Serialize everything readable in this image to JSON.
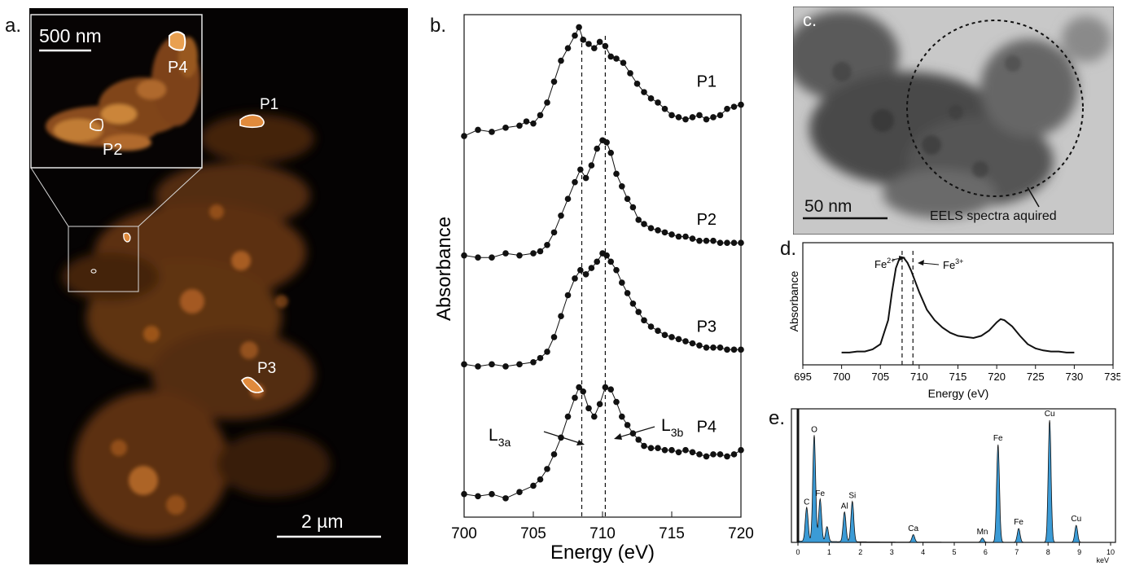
{
  "panels": {
    "a": {
      "letter": "a.",
      "inset_scale": "500 nm",
      "main_scale": "2 µm",
      "regions": [
        "P1",
        "P2",
        "P3",
        "P4"
      ],
      "colors": {
        "background": "#050303",
        "signal": "#d97a2a",
        "outline": "#ffffff"
      }
    },
    "b": {
      "letter": "b.",
      "ylabel": "Absorbance",
      "xlabel": "Energy (eV)",
      "xticks": [
        700,
        705,
        710,
        715,
        720
      ],
      "xlim": [
        700,
        720
      ],
      "dashed_lines": [
        708.5,
        710.2
      ],
      "annotations": {
        "l3a_main": "L",
        "l3a_sub": "3a",
        "l3b_main": "L",
        "l3b_sub": "3b"
      }
    },
    "c": {
      "letter": "c.",
      "scale": "50 nm",
      "annotation": "EELS spectra aquired"
    },
    "d": {
      "letter": "d.",
      "ylabel": "Absorbance",
      "xlabel": "Energy (eV)",
      "xticks": [
        695,
        700,
        705,
        710,
        715,
        720,
        725,
        730,
        735
      ],
      "xlim": [
        695,
        735
      ],
      "dashed_lines": [
        707.8,
        709.2
      ],
      "fe2_main": "Fe",
      "fe2_sup": "2+",
      "fe3_main": "Fe",
      "fe3_sup": "3+"
    },
    "e": {
      "letter": "e.",
      "xunit": "keV",
      "xticks": [
        0,
        1,
        2,
        3,
        4,
        5,
        6,
        7,
        8,
        9,
        10
      ],
      "fill_color": "#3b9bd6",
      "peak_labels": [
        "C",
        "O",
        "Fe",
        "Al",
        "Si",
        "Ca",
        "Mn",
        "Fe",
        "Fe",
        "Cu",
        "Cu"
      ]
    }
  },
  "chart_data": [
    {
      "type": "line",
      "panel": "b",
      "xlabel": "Energy (eV)",
      "ylabel": "Absorbance",
      "xlim": [
        700,
        720
      ],
      "ylim": [
        0,
        12
      ],
      "dashed_x": [
        708.5,
        710.2
      ],
      "series": [
        {
          "name": "P1",
          "x": [
            700,
            701,
            702,
            703,
            704,
            704.5,
            705,
            705.5,
            706,
            706.5,
            707,
            707.5,
            708,
            708.3,
            708.6,
            709,
            709.4,
            709.8,
            710.2,
            710.6,
            711,
            711.5,
            712,
            712.5,
            713,
            713.5,
            714,
            714.5,
            715,
            715.5,
            716,
            716.5,
            717,
            717.5,
            718,
            718.5,
            719,
            719.5,
            720
          ],
          "y": [
            9.1,
            9.25,
            9.2,
            9.3,
            9.35,
            9.45,
            9.4,
            9.6,
            9.9,
            10.4,
            10.9,
            11.2,
            11.5,
            11.7,
            11.4,
            11.3,
            11.2,
            11.35,
            11.25,
            11.0,
            10.95,
            10.85,
            10.6,
            10.35,
            10.15,
            10.0,
            9.9,
            9.75,
            9.6,
            9.55,
            9.5,
            9.55,
            9.6,
            9.5,
            9.55,
            9.6,
            9.75,
            9.8,
            9.85
          ]
        },
        {
          "name": "P2",
          "x": [
            700,
            701,
            702,
            703,
            704,
            705,
            705.5,
            706,
            706.5,
            707,
            707.5,
            708,
            708.4,
            708.8,
            709.2,
            709.6,
            710,
            710.3,
            710.6,
            711,
            711.4,
            711.8,
            712.2,
            712.6,
            713,
            713.5,
            714,
            714.5,
            715,
            715.5,
            716,
            716.5,
            717,
            717.5,
            718,
            718.5,
            719,
            719.5,
            720
          ],
          "y": [
            6.25,
            6.2,
            6.2,
            6.3,
            6.25,
            6.3,
            6.35,
            6.5,
            6.8,
            7.2,
            7.6,
            8.0,
            8.3,
            8.1,
            8.4,
            8.8,
            9.0,
            8.95,
            8.7,
            8.2,
            7.9,
            7.6,
            7.4,
            7.1,
            7.0,
            6.9,
            6.85,
            6.8,
            6.75,
            6.7,
            6.7,
            6.65,
            6.6,
            6.6,
            6.6,
            6.55,
            6.55,
            6.55,
            6.55
          ]
        },
        {
          "name": "P3",
          "x": [
            700,
            701,
            702,
            703,
            704,
            705,
            705.5,
            706,
            706.5,
            707,
            707.5,
            708,
            708.4,
            708.8,
            709.2,
            709.6,
            710,
            710.3,
            710.6,
            711,
            711.4,
            711.8,
            712.2,
            712.6,
            713,
            713.5,
            714,
            714.5,
            715,
            715.5,
            716,
            716.5,
            717,
            717.5,
            718,
            718.5,
            719,
            719.5,
            720
          ],
          "y": [
            3.65,
            3.6,
            3.65,
            3.6,
            3.65,
            3.7,
            3.8,
            3.95,
            4.3,
            4.8,
            5.3,
            5.7,
            5.9,
            5.8,
            5.95,
            6.1,
            6.3,
            6.25,
            6.1,
            5.9,
            5.6,
            5.35,
            5.1,
            4.9,
            4.7,
            4.55,
            4.45,
            4.35,
            4.3,
            4.25,
            4.2,
            4.15,
            4.1,
            4.05,
            4.05,
            4.05,
            4.0,
            4.0,
            4.0
          ]
        },
        {
          "name": "P4",
          "x": [
            700,
            701,
            702,
            703,
            704,
            705,
            705.5,
            706,
            706.5,
            707,
            707.5,
            708,
            708.3,
            708.6,
            709,
            709.4,
            709.8,
            710.2,
            710.6,
            711,
            711.4,
            711.8,
            712.2,
            712.6,
            713,
            713.5,
            714,
            714.5,
            715,
            715.5,
            716,
            716.5,
            717,
            717.5,
            718,
            718.5,
            719,
            719.5,
            720
          ],
          "y": [
            0.55,
            0.5,
            0.55,
            0.45,
            0.6,
            0.75,
            0.9,
            1.15,
            1.5,
            1.9,
            2.4,
            2.85,
            3.1,
            3.0,
            2.6,
            2.4,
            2.7,
            3.1,
            3.05,
            2.75,
            2.4,
            2.2,
            2.0,
            1.85,
            1.7,
            1.65,
            1.65,
            1.6,
            1.6,
            1.55,
            1.6,
            1.55,
            1.5,
            1.45,
            1.5,
            1.5,
            1.45,
            1.5,
            1.6
          ]
        }
      ]
    },
    {
      "type": "line",
      "panel": "d",
      "xlabel": "Energy (eV)",
      "ylabel": "Absorbance",
      "xlim": [
        695,
        735
      ],
      "ylim": [
        0,
        1
      ],
      "dashed_x": [
        707.8,
        709.2
      ],
      "series": [
        {
          "x": [
            700,
            701,
            702,
            703,
            704,
            705,
            706,
            706.5,
            707,
            707.5,
            708,
            708.5,
            709,
            709.5,
            710,
            711,
            712,
            713,
            714,
            715,
            716,
            717,
            718,
            719,
            720,
            720.5,
            721,
            722,
            723,
            724,
            725,
            726,
            727,
            728,
            729,
            730
          ],
          "y": [
            0.04,
            0.04,
            0.05,
            0.05,
            0.07,
            0.12,
            0.35,
            0.62,
            0.85,
            0.95,
            0.95,
            0.9,
            0.82,
            0.72,
            0.62,
            0.45,
            0.35,
            0.28,
            0.23,
            0.2,
            0.19,
            0.18,
            0.2,
            0.25,
            0.33,
            0.36,
            0.35,
            0.29,
            0.2,
            0.12,
            0.08,
            0.06,
            0.05,
            0.05,
            0.04,
            0.04
          ]
        }
      ]
    },
    {
      "type": "area",
      "panel": "e",
      "xlabel": "keV",
      "xlim": [
        0,
        10
      ],
      "peaks": [
        {
          "label": "C",
          "x": 0.28,
          "height": 0.32
        },
        {
          "label": "O",
          "x": 0.52,
          "height": 1.0
        },
        {
          "label": "Fe",
          "x": 0.71,
          "height": 0.4
        },
        {
          "label": "",
          "x": 0.93,
          "height": 0.14
        },
        {
          "label": "Al",
          "x": 1.49,
          "height": 0.28
        },
        {
          "label": "Si",
          "x": 1.74,
          "height": 0.38
        },
        {
          "label": "Ca",
          "x": 3.69,
          "height": 0.07
        },
        {
          "label": "Mn",
          "x": 5.9,
          "height": 0.04
        },
        {
          "label": "Fe",
          "x": 6.4,
          "height": 0.92
        },
        {
          "label": "Fe",
          "x": 7.06,
          "height": 0.13
        },
        {
          "label": "Cu",
          "x": 8.05,
          "height": 1.15
        },
        {
          "label": "Cu",
          "x": 8.9,
          "height": 0.16
        }
      ]
    }
  ]
}
